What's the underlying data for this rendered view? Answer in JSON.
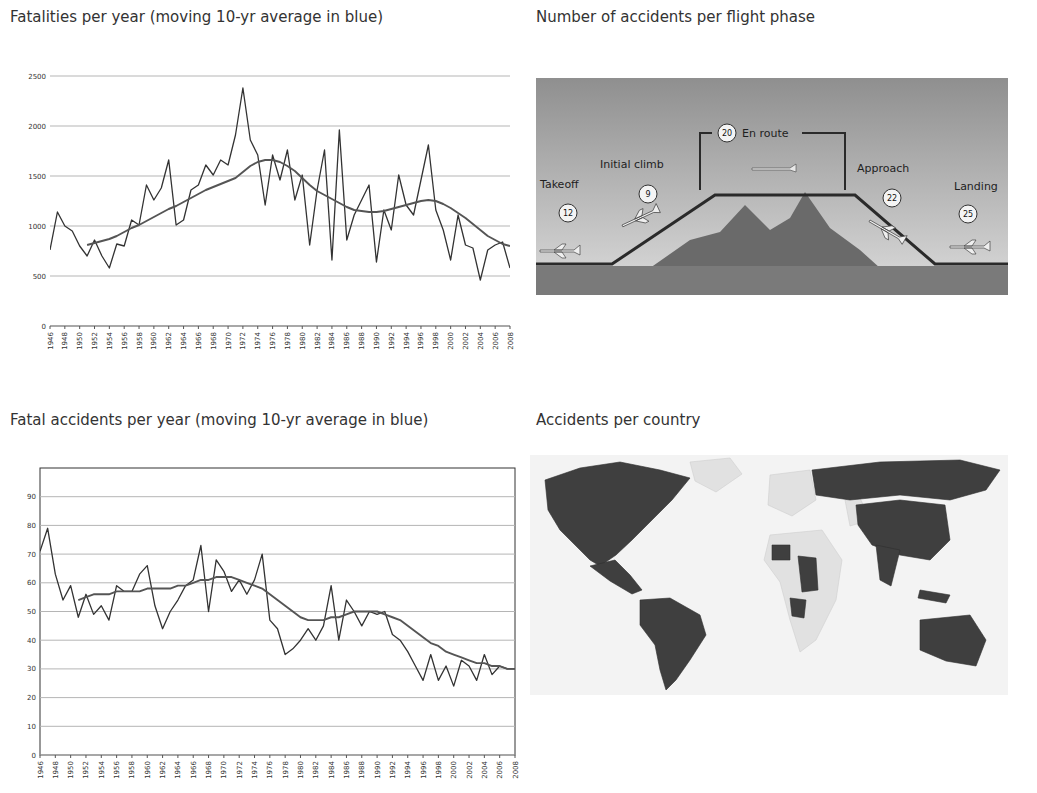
{
  "chart_data": [
    {
      "type": "line",
      "title": "Fatalities per year (moving 10-yr average in blue)",
      "x": [
        1946,
        1947,
        1948,
        1949,
        1950,
        1951,
        1952,
        1953,
        1954,
        1955,
        1956,
        1957,
        1958,
        1959,
        1960,
        1961,
        1962,
        1963,
        1964,
        1965,
        1966,
        1967,
        1968,
        1969,
        1970,
        1971,
        1972,
        1973,
        1974,
        1975,
        1976,
        1977,
        1978,
        1979,
        1980,
        1981,
        1982,
        1983,
        1984,
        1985,
        1986,
        1987,
        1988,
        1989,
        1990,
        1991,
        1992,
        1993,
        1994,
        1995,
        1996,
        1997,
        1998,
        1999,
        2000,
        2001,
        2002,
        2003,
        2004,
        2005,
        2006,
        2007,
        2008
      ],
      "xlim": [
        1946,
        2008
      ],
      "xticks": [
        1946,
        1948,
        1950,
        1952,
        1954,
        1956,
        1958,
        1960,
        1962,
        1964,
        1966,
        1968,
        1970,
        1972,
        1974,
        1976,
        1978,
        1980,
        1982,
        1984,
        1986,
        1988,
        1990,
        1992,
        1994,
        1996,
        1998,
        2000,
        2002,
        2004,
        2006,
        2008
      ],
      "ylim": [
        0,
        2500
      ],
      "yticks": [
        0,
        500,
        1000,
        1500,
        2000,
        2500
      ],
      "grid": true,
      "series": [
        {
          "color": "#333333",
          "line_style": "solid",
          "values": [
            760,
            1140,
            1000,
            950,
            800,
            700,
            860,
            700,
            580,
            820,
            800,
            1060,
            1010,
            1410,
            1260,
            1380,
            1660,
            1010,
            1060,
            1360,
            1410,
            1610,
            1510,
            1660,
            1610,
            1910,
            2380,
            1860,
            1710,
            1210,
            1710,
            1460,
            1760,
            1260,
            1510,
            810,
            1360,
            1760,
            660,
            1960,
            860,
            1110,
            1260,
            1410,
            640,
            1160,
            960,
            1510,
            1210,
            1110,
            1460,
            1810,
            1160,
            960,
            660,
            1110,
            810,
            780,
            460,
            760,
            810,
            840,
            580
          ]
        },
        {
          "color": "#555555",
          "line_style": "solid",
          "values": [
            null,
            null,
            null,
            null,
            null,
            810,
            830,
            850,
            870,
            900,
            940,
            980,
            1010,
            1050,
            1090,
            1130,
            1170,
            1200,
            1240,
            1280,
            1320,
            1360,
            1390,
            1420,
            1450,
            1480,
            1540,
            1600,
            1640,
            1660,
            1660,
            1640,
            1600,
            1550,
            1480,
            1410,
            1350,
            1310,
            1270,
            1230,
            1190,
            1160,
            1150,
            1140,
            1140,
            1150,
            1170,
            1190,
            1210,
            1230,
            1250,
            1260,
            1250,
            1220,
            1180,
            1130,
            1080,
            1020,
            960,
            900,
            860,
            820,
            800
          ]
        }
      ]
    },
    {
      "type": "line",
      "title": "Fatal accidents per year (moving 10-yr average in blue)",
      "x": [
        1946,
        1947,
        1948,
        1949,
        1950,
        1951,
        1952,
        1953,
        1954,
        1955,
        1956,
        1957,
        1958,
        1959,
        1960,
        1961,
        1962,
        1963,
        1964,
        1965,
        1966,
        1967,
        1968,
        1969,
        1970,
        1971,
        1972,
        1973,
        1974,
        1975,
        1976,
        1977,
        1978,
        1979,
        1980,
        1981,
        1982,
        1983,
        1984,
        1985,
        1986,
        1987,
        1988,
        1989,
        1990,
        1991,
        1992,
        1993,
        1994,
        1995,
        1996,
        1997,
        1998,
        1999,
        2000,
        2001,
        2002,
        2003,
        2004,
        2005,
        2006,
        2007,
        2008
      ],
      "xlim": [
        1946,
        2008
      ],
      "xticks": [
        1946,
        1948,
        1950,
        1952,
        1954,
        1956,
        1958,
        1960,
        1962,
        1964,
        1966,
        1968,
        1970,
        1972,
        1974,
        1976,
        1978,
        1980,
        1982,
        1984,
        1986,
        1988,
        1990,
        1992,
        1994,
        1996,
        1998,
        2000,
        2002,
        2004,
        2006,
        2008
      ],
      "ylim": [
        0,
        100
      ],
      "yticks": [
        0,
        10,
        20,
        30,
        40,
        50,
        60,
        70,
        80,
        90
      ],
      "grid": true,
      "series": [
        {
          "color": "#333333",
          "line_style": "solid",
          "values": [
            71,
            79,
            63,
            54,
            59,
            48,
            56,
            49,
            52,
            47,
            59,
            57,
            57,
            63,
            66,
            52,
            44,
            50,
            54,
            59,
            61,
            73,
            50,
            68,
            64,
            57,
            61,
            56,
            61,
            70,
            47,
            44,
            35,
            37,
            40,
            44,
            40,
            45,
            59,
            40,
            54,
            50,
            45,
            50,
            49,
            50,
            42,
            40,
            36,
            31,
            26,
            35,
            26,
            31,
            24,
            33,
            31,
            26,
            35,
            28,
            31,
            30,
            30
          ]
        },
        {
          "color": "#555555",
          "line_style": "solid",
          "values": [
            null,
            null,
            null,
            null,
            null,
            54,
            55,
            56,
            56,
            56,
            57,
            57,
            57,
            57,
            58,
            58,
            58,
            58,
            59,
            59,
            60,
            61,
            61,
            62,
            62,
            62,
            61,
            60,
            59,
            58,
            56,
            54,
            52,
            50,
            48,
            47,
            47,
            47,
            48,
            48,
            49,
            50,
            50,
            50,
            50,
            49,
            48,
            47,
            45,
            43,
            41,
            39,
            38,
            36,
            35,
            34,
            33,
            32,
            32,
            31,
            31,
            30,
            30
          ]
        }
      ]
    }
  ],
  "diagram": {
    "title": "Number of accidents per flight phase",
    "phases": [
      {
        "label": "Takeoff",
        "count": 12
      },
      {
        "label": "Initial climb",
        "count": 9
      },
      {
        "label": "En route",
        "count": 20
      },
      {
        "label": "Approach",
        "count": 22
      },
      {
        "label": "Landing",
        "count": 25
      }
    ]
  },
  "map": {
    "title": "Accidents per country"
  }
}
